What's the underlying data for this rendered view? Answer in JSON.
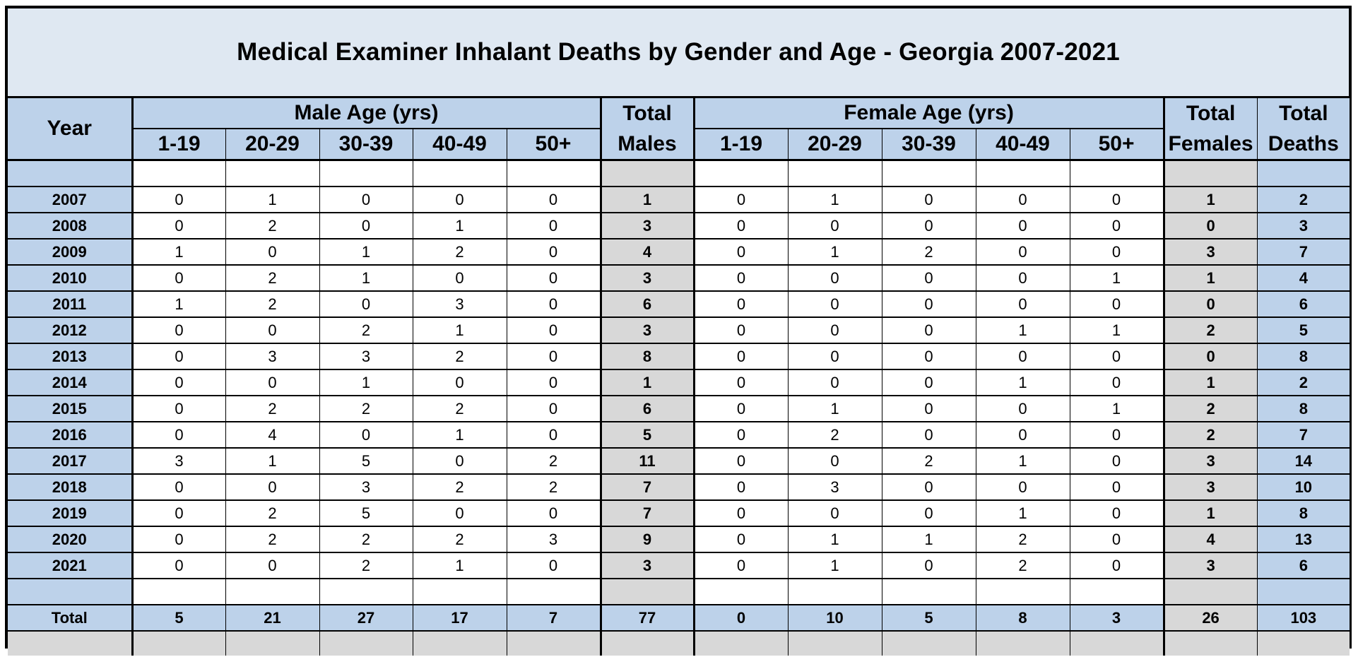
{
  "title": "Medical Examiner Inhalant Deaths by Gender and Age - Georgia 2007-2021",
  "headers": {
    "year": "Year",
    "male_group": "Male Age (yrs)",
    "female_group": "Female Age (yrs)",
    "total_males_1": "Total",
    "total_males_2": "Males",
    "total_females_1": "Total",
    "total_females_2": "Females",
    "total_deaths_1": "Total",
    "total_deaths_2": "Deaths",
    "male_ages": [
      "1-19",
      "20-29",
      "30-39",
      "40-49",
      "50+"
    ],
    "female_ages": [
      "1-19",
      "20-29",
      "30-39",
      "40-49",
      "50+"
    ]
  },
  "rows": [
    {
      "year": "2007",
      "m": [
        "0",
        "1",
        "0",
        "0",
        "0"
      ],
      "tm": "1",
      "f": [
        "0",
        "1",
        "0",
        "0",
        "0"
      ],
      "tf": "1",
      "td": "2"
    },
    {
      "year": "2008",
      "m": [
        "0",
        "2",
        "0",
        "1",
        "0"
      ],
      "tm": "3",
      "f": [
        "0",
        "0",
        "0",
        "0",
        "0"
      ],
      "tf": "0",
      "td": "3"
    },
    {
      "year": "2009",
      "m": [
        "1",
        "0",
        "1",
        "2",
        "0"
      ],
      "tm": "4",
      "f": [
        "0",
        "1",
        "2",
        "0",
        "0"
      ],
      "tf": "3",
      "td": "7"
    },
    {
      "year": "2010",
      "m": [
        "0",
        "2",
        "1",
        "0",
        "0"
      ],
      "tm": "3",
      "f": [
        "0",
        "0",
        "0",
        "0",
        "1"
      ],
      "tf": "1",
      "td": "4"
    },
    {
      "year": "2011",
      "m": [
        "1",
        "2",
        "0",
        "3",
        "0"
      ],
      "tm": "6",
      "f": [
        "0",
        "0",
        "0",
        "0",
        "0"
      ],
      "tf": "0",
      "td": "6"
    },
    {
      "year": "2012",
      "m": [
        "0",
        "0",
        "2",
        "1",
        "0"
      ],
      "tm": "3",
      "f": [
        "0",
        "0",
        "0",
        "1",
        "1"
      ],
      "tf": "2",
      "td": "5"
    },
    {
      "year": "2013",
      "m": [
        "0",
        "3",
        "3",
        "2",
        "0"
      ],
      "tm": "8",
      "f": [
        "0",
        "0",
        "0",
        "0",
        "0"
      ],
      "tf": "0",
      "td": "8"
    },
    {
      "year": "2014",
      "m": [
        "0",
        "0",
        "1",
        "0",
        "0"
      ],
      "tm": "1",
      "f": [
        "0",
        "0",
        "0",
        "1",
        "0"
      ],
      "tf": "1",
      "td": "2"
    },
    {
      "year": "2015",
      "m": [
        "0",
        "2",
        "2",
        "2",
        "0"
      ],
      "tm": "6",
      "f": [
        "0",
        "1",
        "0",
        "0",
        "1"
      ],
      "tf": "2",
      "td": "8"
    },
    {
      "year": "2016",
      "m": [
        "0",
        "4",
        "0",
        "1",
        "0"
      ],
      "tm": "5",
      "f": [
        "0",
        "2",
        "0",
        "0",
        "0"
      ],
      "tf": "2",
      "td": "7"
    },
    {
      "year": "2017",
      "m": [
        "3",
        "1",
        "5",
        "0",
        "2"
      ],
      "tm": "11",
      "f": [
        "0",
        "0",
        "2",
        "1",
        "0"
      ],
      "tf": "3",
      "td": "14"
    },
    {
      "year": "2018",
      "m": [
        "0",
        "0",
        "3",
        "2",
        "2"
      ],
      "tm": "7",
      "f": [
        "0",
        "3",
        "0",
        "0",
        "0"
      ],
      "tf": "3",
      "td": "10"
    },
    {
      "year": "2019",
      "m": [
        "0",
        "2",
        "5",
        "0",
        "0"
      ],
      "tm": "7",
      "f": [
        "0",
        "0",
        "0",
        "1",
        "0"
      ],
      "tf": "1",
      "td": "8"
    },
    {
      "year": "2020",
      "m": [
        "0",
        "2",
        "2",
        "2",
        "3"
      ],
      "tm": "9",
      "f": [
        "0",
        "1",
        "1",
        "2",
        "0"
      ],
      "tf": "4",
      "td": "13"
    },
    {
      "year": "2021",
      "m": [
        "0",
        "0",
        "2",
        "1",
        "0"
      ],
      "tm": "3",
      "f": [
        "0",
        "1",
        "0",
        "2",
        "0"
      ],
      "tf": "3",
      "td": "6"
    }
  ],
  "total_row": {
    "label": "Total",
    "m": [
      "5",
      "21",
      "27",
      "17",
      "7"
    ],
    "tm": "77",
    "f": [
      "0",
      "10",
      "5",
      "8",
      "3"
    ],
    "tf": "26",
    "td": "103"
  },
  "colors": {
    "header_blue": "#bdd2ea",
    "title_band": "#dfe8f2",
    "total_gray": "#d8d8d8"
  }
}
